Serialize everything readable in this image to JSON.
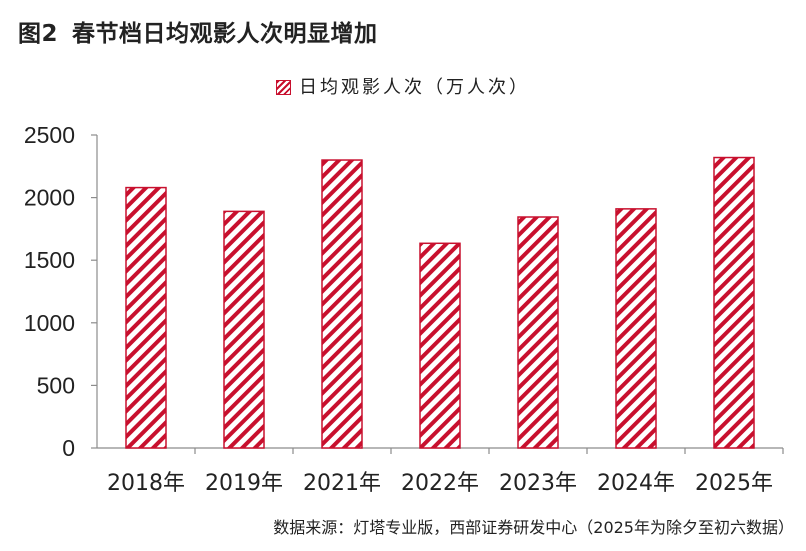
{
  "figure": {
    "number": "图2",
    "title": "春节档日均观影人次明显增加"
  },
  "chart_data": {
    "type": "bar",
    "categories": [
      "2018年",
      "2019年",
      "2021年",
      "2022年",
      "2023年",
      "2024年",
      "2025年"
    ],
    "series": [
      {
        "name": "日均观影人次（万人次）",
        "values": [
          2080,
          1890,
          2300,
          1635,
          1845,
          1910,
          2320
        ]
      }
    ],
    "ylim": [
      0,
      2500
    ],
    "yticks": [
      0,
      500,
      1000,
      1500,
      2000,
      2500
    ],
    "legend_position": "top-center",
    "grid": false,
    "colors": {
      "bar": "#c8102e"
    }
  },
  "source_note": "数据来源：灯塔专业版，西部证券研发中心（2025年为除夕至初六数据）"
}
